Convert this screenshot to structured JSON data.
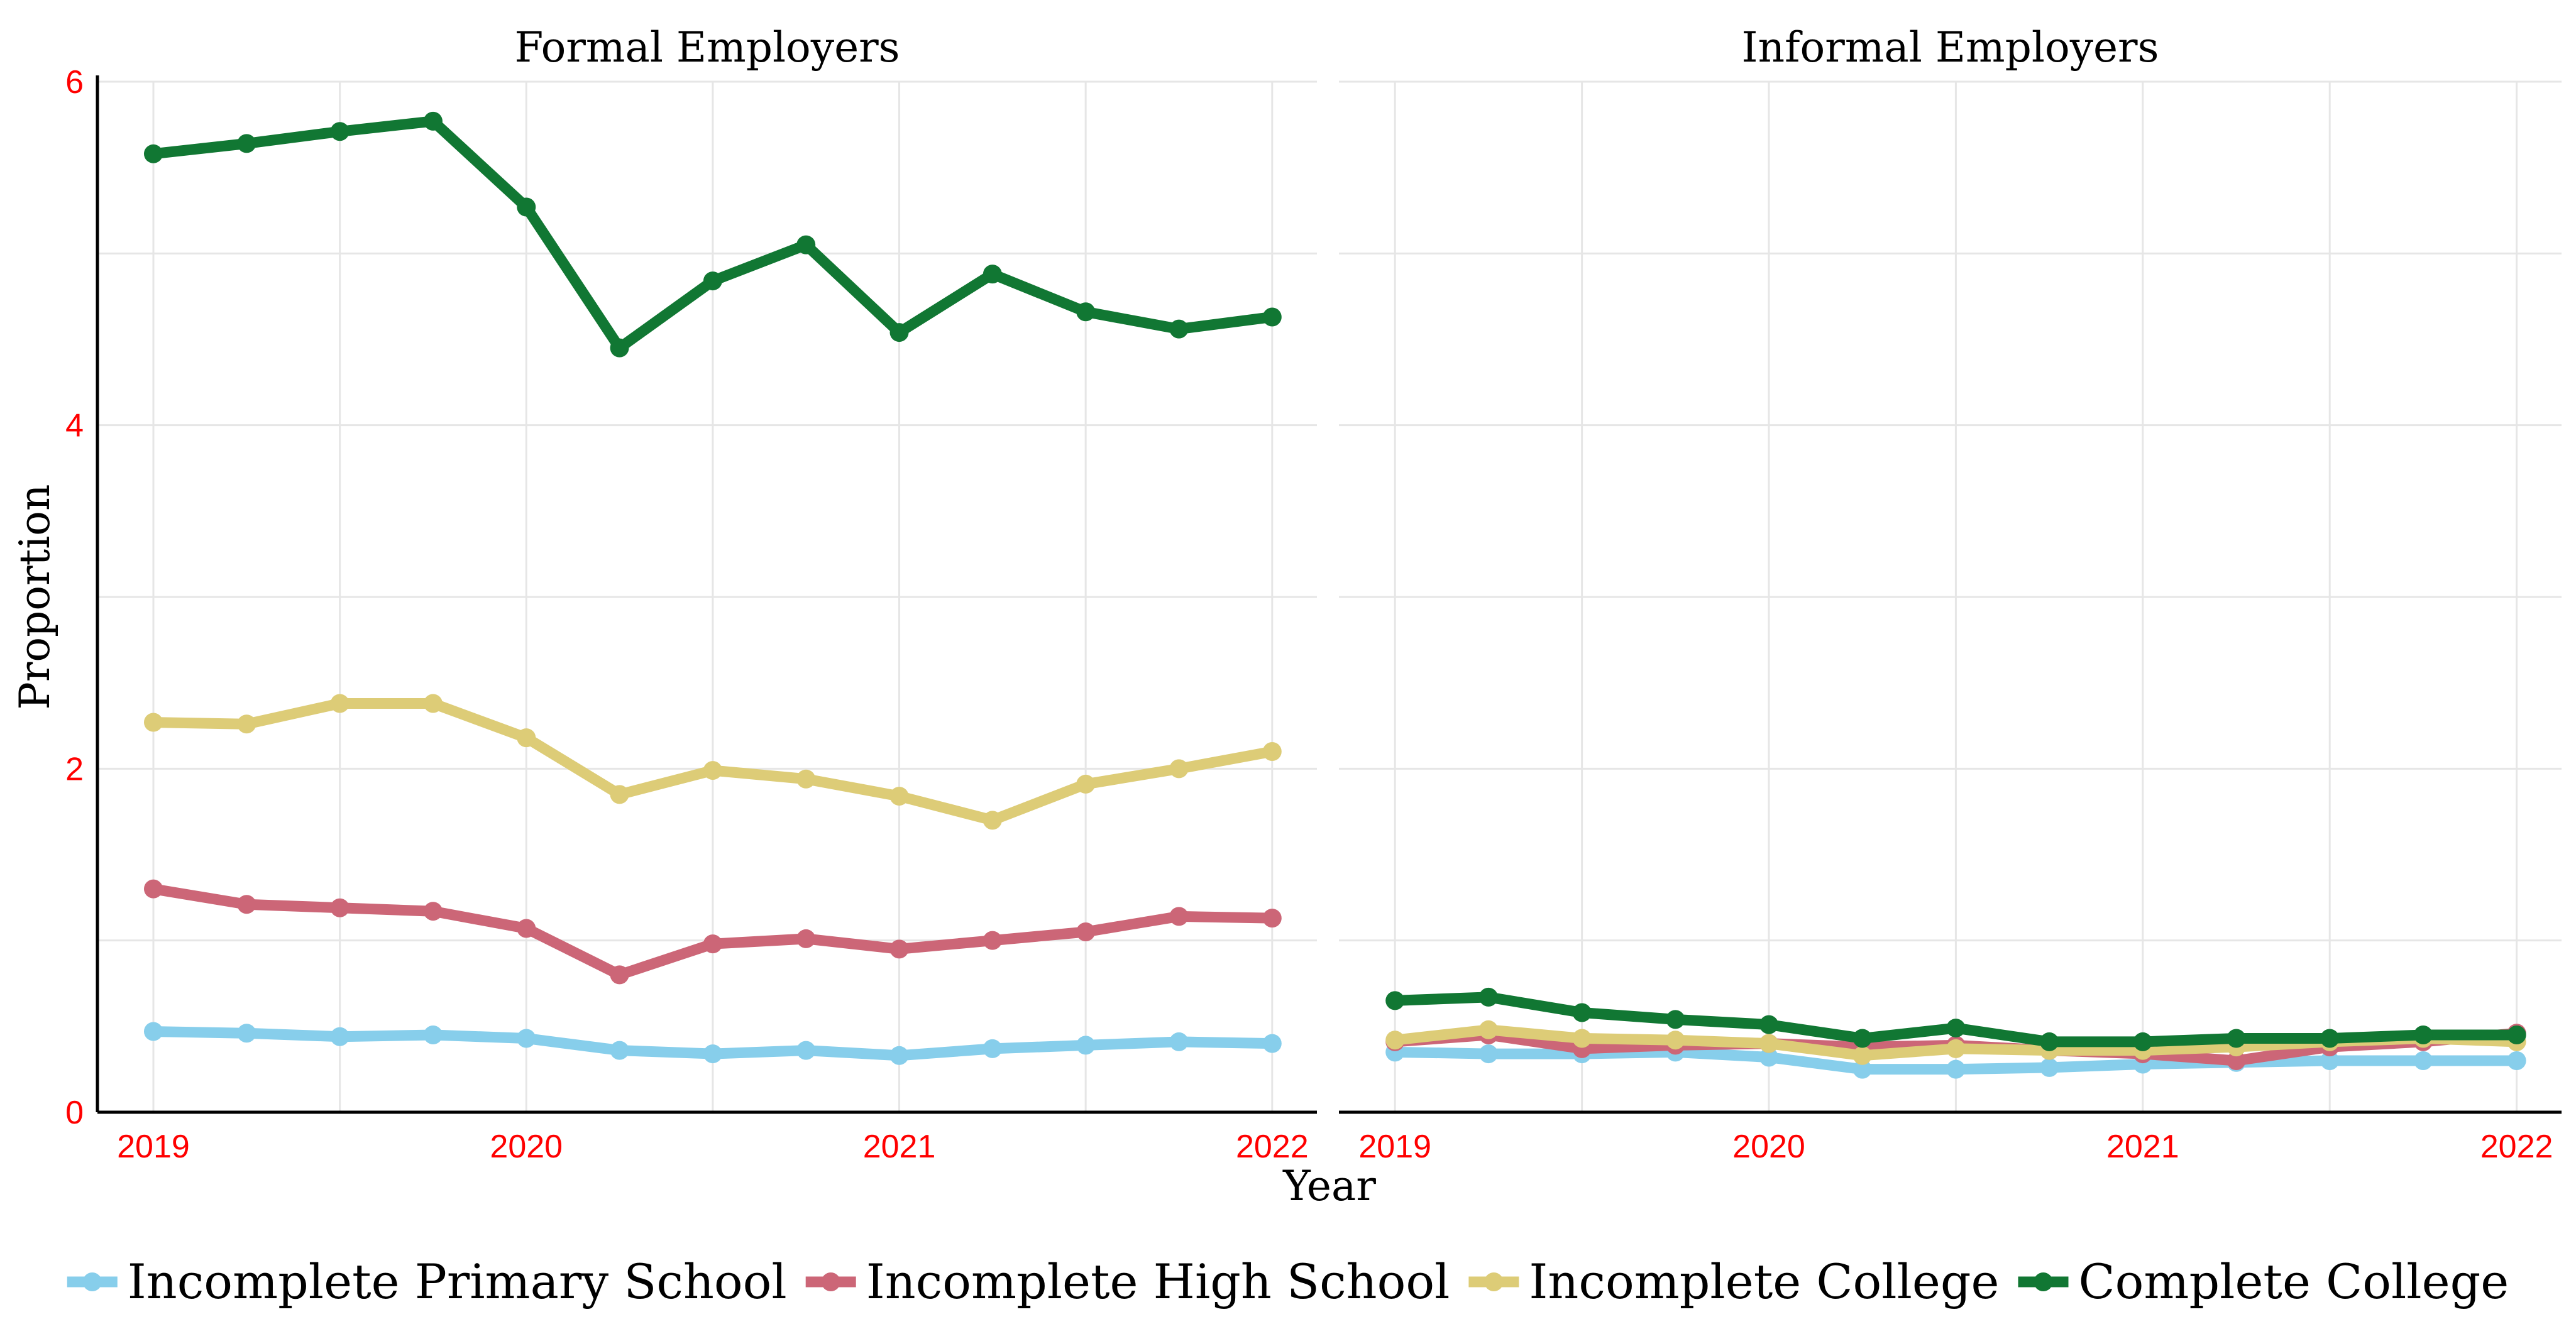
{
  "chart_data": {
    "type": "line",
    "xlabel": "Year",
    "ylabel": "Proportion",
    "ylim": [
      0,
      6
    ],
    "yticks": [
      0,
      2,
      4,
      6
    ],
    "xticks": [
      2019,
      2020,
      2021,
      2022
    ],
    "xlim": [
      2018.85,
      2022.12
    ],
    "tick_label_color": "#ff0000",
    "grid": true,
    "legend_position": "bottom",
    "x": [
      2019.0,
      2019.25,
      2019.5,
      2019.75,
      2020.0,
      2020.25,
      2020.5,
      2020.75,
      2021.0,
      2021.25,
      2021.5,
      2021.75,
      2022.0
    ],
    "series_meta": [
      {
        "name": "Incomplete Primary School",
        "color": "#87ceeb"
      },
      {
        "name": "Incomplete High School",
        "color": "#cc6677"
      },
      {
        "name": "Incomplete College",
        "color": "#ddcc77"
      },
      {
        "name": "Complete College",
        "color": "#117733"
      }
    ],
    "panels": [
      {
        "title": "Formal Employers",
        "series": [
          {
            "name": "Incomplete Primary School",
            "values": [
              0.47,
              0.46,
              0.44,
              0.45,
              0.43,
              0.36,
              0.34,
              0.36,
              0.33,
              0.37,
              0.39,
              0.41,
              0.4
            ]
          },
          {
            "name": "Incomplete High School",
            "values": [
              1.3,
              1.21,
              1.19,
              1.17,
              1.07,
              0.8,
              0.98,
              1.01,
              0.95,
              1.0,
              1.05,
              1.14,
              1.13
            ]
          },
          {
            "name": "Incomplete College",
            "values": [
              2.27,
              2.26,
              2.38,
              2.38,
              2.18,
              1.85,
              1.99,
              1.94,
              1.84,
              1.7,
              1.91,
              2.0,
              2.1
            ]
          },
          {
            "name": "Complete College",
            "values": [
              5.58,
              5.64,
              5.71,
              5.77,
              5.27,
              4.45,
              4.84,
              5.05,
              4.54,
              4.88,
              4.66,
              4.56,
              4.63
            ]
          }
        ]
      },
      {
        "title": "Informal Employers",
        "series": [
          {
            "name": "Incomplete Primary School",
            "values": [
              0.35,
              0.34,
              0.34,
              0.35,
              0.32,
              0.25,
              0.25,
              0.26,
              0.28,
              0.29,
              0.3,
              0.3,
              0.3
            ]
          },
          {
            "name": "Incomplete High School",
            "values": [
              0.41,
              0.45,
              0.37,
              0.39,
              0.4,
              0.38,
              0.39,
              0.36,
              0.34,
              0.3,
              0.38,
              0.41,
              0.46
            ]
          },
          {
            "name": "Incomplete College",
            "values": [
              0.42,
              0.48,
              0.43,
              0.42,
              0.4,
              0.33,
              0.37,
              0.36,
              0.36,
              0.38,
              0.41,
              0.43,
              0.41
            ]
          },
          {
            "name": "Complete College",
            "values": [
              0.65,
              0.67,
              0.58,
              0.54,
              0.51,
              0.43,
              0.49,
              0.41,
              0.41,
              0.43,
              0.43,
              0.45,
              0.45
            ]
          }
        ]
      }
    ]
  }
}
